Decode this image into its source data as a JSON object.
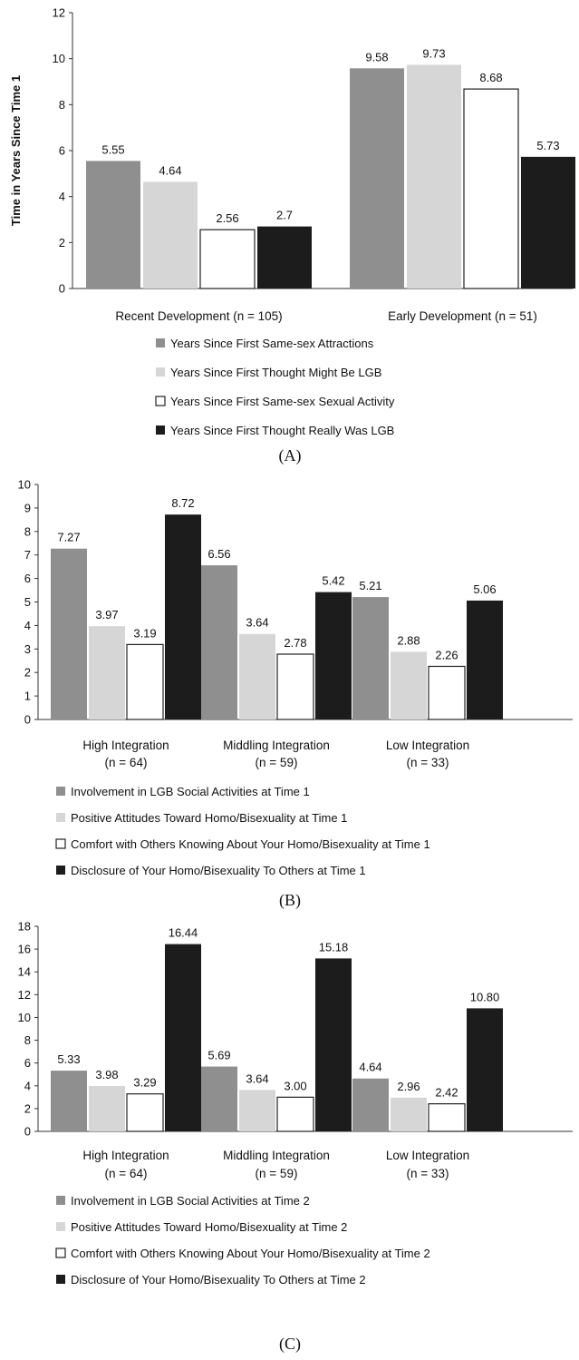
{
  "chart_data": [
    {
      "type": "bar",
      "panel_label": "(A)",
      "ylabel": "Time in Years Since Time 1",
      "ylim": [
        0,
        12
      ],
      "yticks": [
        0,
        2,
        4,
        6,
        8,
        10,
        12
      ],
      "grid": false,
      "legend_position": "bottom",
      "categories": [
        [
          "Recent Development (n = 105)"
        ],
        [
          "Early Development (n = 51)"
        ]
      ],
      "series": [
        {
          "name": "Years Since First Same-sex Attractions",
          "color": "#8f8f8f",
          "values": [
            5.55,
            9.58
          ],
          "labels": [
            "5.55",
            "9.58"
          ]
        },
        {
          "name": "Years Since First Thought Might Be LGB",
          "color": "#d6d6d6",
          "values": [
            4.64,
            9.73
          ],
          "labels": [
            "4.64",
            "9.73"
          ]
        },
        {
          "name": "Years Since First Same-sex Sexual Activity",
          "color": "#ffffff",
          "values": [
            2.56,
            8.68
          ],
          "labels": [
            "2.56",
            "8.68"
          ]
        },
        {
          "name": "Years Since First Thought Really Was LGB",
          "color": "#1c1c1c",
          "values": [
            2.7,
            5.73
          ],
          "labels": [
            "2.7",
            "5.73"
          ]
        }
      ]
    },
    {
      "type": "bar",
      "panel_label": "(B)",
      "ylabel": "",
      "ylim": [
        0,
        10
      ],
      "yticks": [
        0,
        1,
        2,
        3,
        4,
        5,
        6,
        7,
        8,
        9,
        10
      ],
      "grid": false,
      "legend_position": "bottom",
      "categories": [
        [
          "High Integration",
          "(n = 64)"
        ],
        [
          "Middling Integration",
          "(n = 59)"
        ],
        [
          "Low Integration",
          "(n = 33)"
        ]
      ],
      "series": [
        {
          "name": "Involvement in LGB Social Activities at Time 1",
          "color": "#8f8f8f",
          "values": [
            7.27,
            6.56,
            5.21
          ],
          "labels": [
            "7.27",
            "6.56",
            "5.21"
          ]
        },
        {
          "name": "Positive Attitudes Toward Homo/Bisexuality at Time 1",
          "color": "#d6d6d6",
          "values": [
            3.97,
            3.64,
            2.88
          ],
          "labels": [
            "3.97",
            "3.64",
            "2.88"
          ]
        },
        {
          "name": "Comfort with Others Knowing About Your Homo/Bisexuality at Time 1",
          "color": "#ffffff",
          "values": [
            3.19,
            2.78,
            2.26
          ],
          "labels": [
            "3.19",
            "2.78",
            "2.26"
          ]
        },
        {
          "name": "Disclosure of Your Homo/Bisexuality To Others at Time 1",
          "color": "#1c1c1c",
          "values": [
            8.72,
            5.42,
            5.06
          ],
          "labels": [
            "8.72",
            "5.42",
            "5.06"
          ]
        }
      ]
    },
    {
      "type": "bar",
      "panel_label": "(C)",
      "ylabel": "",
      "ylim": [
        0,
        18
      ],
      "yticks": [
        0,
        2,
        4,
        6,
        8,
        10,
        12,
        14,
        16,
        18
      ],
      "grid": false,
      "legend_position": "bottom",
      "categories": [
        [
          "High Integration",
          "(n = 64)"
        ],
        [
          "Middling Integration",
          "(n = 59)"
        ],
        [
          "Low Integration",
          "(n = 33)"
        ]
      ],
      "series": [
        {
          "name": "Involvement in LGB Social Activities at Time 2",
          "color": "#8f8f8f",
          "values": [
            5.33,
            5.69,
            4.64
          ],
          "labels": [
            "5.33",
            "5.69",
            "4.64"
          ]
        },
        {
          "name": "Positive Attitudes Toward Homo/Bisexuality at Time 2",
          "color": "#d6d6d6",
          "values": [
            3.98,
            3.64,
            2.96
          ],
          "labels": [
            "3.98",
            "3.64",
            "2.96"
          ]
        },
        {
          "name": "Comfort with Others Knowing About Your Homo/Bisexuality at Time 2",
          "color": "#ffffff",
          "values": [
            3.29,
            3.0,
            2.42
          ],
          "labels": [
            "3.29",
            "3.00",
            "2.42"
          ]
        },
        {
          "name": "Disclosure of Your Homo/Bisexuality To Others at Time 2",
          "color": "#1c1c1c",
          "values": [
            16.44,
            15.18,
            10.8
          ],
          "labels": [
            "16.44",
            "15.18",
            "10.80"
          ]
        }
      ]
    }
  ]
}
